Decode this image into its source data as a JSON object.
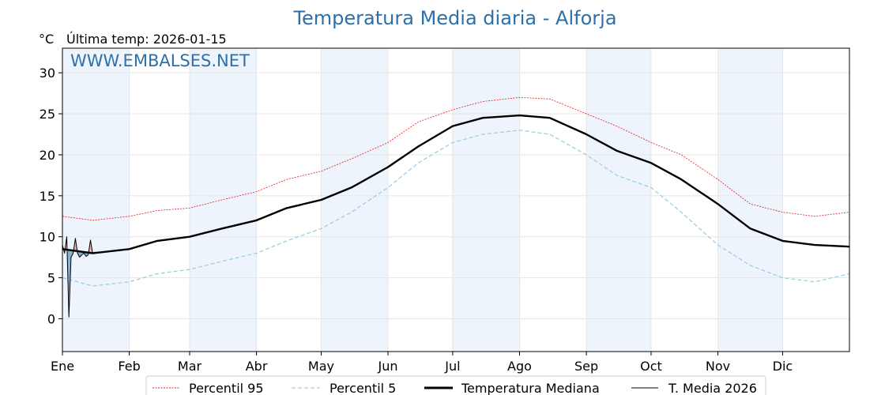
{
  "header": {
    "title": "Temperatura Media diaria - Alforja",
    "unit": "°C",
    "last_temp": "Última temp: 2026-01-15",
    "watermark": "WWW.EMBALSES.NET"
  },
  "legend": {
    "p95": "Percentil 95",
    "p5": "Percentil 5",
    "median": "Temperatura Mediana",
    "current": "T. Media 2026"
  },
  "colors": {
    "p95": "#e41a1c",
    "p5": "#9ccfe0",
    "median": "#000000",
    "current": "#000000",
    "fill_below": "#3a78a8",
    "fill_above": "#e88080",
    "band": "#eef4fb",
    "title": "#2f6fa8"
  },
  "chart_data": {
    "type": "line",
    "title": "Temperatura Media diaria - Alforja",
    "ylabel": "°C",
    "xlabel": "",
    "ylim": [
      -4,
      33
    ],
    "xlim": [
      1,
      366
    ],
    "grid": true,
    "legend_position": "bottom",
    "y_ticks": [
      0,
      5,
      10,
      15,
      20,
      25,
      30
    ],
    "months": [
      {
        "label": "Ene",
        "day": 1
      },
      {
        "label": "Feb",
        "day": 32
      },
      {
        "label": "Mar",
        "day": 60
      },
      {
        "label": "Abr",
        "day": 91
      },
      {
        "label": "May",
        "day": 121
      },
      {
        "label": "Jun",
        "day": 152
      },
      {
        "label": "Jul",
        "day": 182
      },
      {
        "label": "Ago",
        "day": 213
      },
      {
        "label": "Sep",
        "day": 244
      },
      {
        "label": "Oct",
        "day": 274
      },
      {
        "label": "Nov",
        "day": 305
      },
      {
        "label": "Dic",
        "day": 335
      }
    ],
    "series": [
      {
        "name": "Percentil 95",
        "x": [
          1,
          15,
          32,
          45,
          60,
          75,
          91,
          105,
          121,
          135,
          152,
          166,
          182,
          196,
          213,
          227,
          244,
          258,
          274,
          288,
          305,
          320,
          335,
          350,
          366
        ],
        "values": [
          12.5,
          12,
          12.5,
          13.2,
          13.5,
          14.5,
          15.5,
          17,
          18,
          19.5,
          21.5,
          24,
          25.5,
          26.5,
          27,
          26.8,
          25,
          23.5,
          21.5,
          20,
          17,
          14,
          13,
          12.5,
          13
        ]
      },
      {
        "name": "Percentil 5",
        "x": [
          1,
          15,
          32,
          45,
          60,
          75,
          91,
          105,
          121,
          135,
          152,
          166,
          182,
          196,
          213,
          227,
          244,
          258,
          274,
          288,
          305,
          320,
          335,
          350,
          366
        ],
        "values": [
          5,
          4,
          4.5,
          5.5,
          6,
          7,
          8,
          9.5,
          11,
          13,
          16,
          19,
          21.5,
          22.5,
          23,
          22.5,
          20,
          17.5,
          16,
          13,
          9,
          6.5,
          5,
          4.5,
          5.5
        ]
      },
      {
        "name": "Temperatura Mediana",
        "x": [
          1,
          15,
          32,
          45,
          60,
          75,
          91,
          105,
          121,
          135,
          152,
          166,
          182,
          196,
          213,
          227,
          244,
          258,
          274,
          288,
          305,
          320,
          335,
          350,
          366
        ],
        "values": [
          8.5,
          8,
          8.5,
          9.5,
          10,
          11,
          12,
          13.5,
          14.5,
          16,
          18.5,
          21,
          23.5,
          24.5,
          24.8,
          24.5,
          22.5,
          20.5,
          19,
          17,
          14,
          11,
          9.5,
          9,
          8.8
        ]
      },
      {
        "name": "T. Media 2026",
        "x": [
          1,
          2,
          3,
          4,
          5,
          6,
          7,
          8,
          9,
          10,
          11,
          12,
          13,
          14,
          15
        ],
        "values": [
          9,
          8,
          10,
          0.2,
          7.5,
          8,
          9.8,
          8,
          7.5,
          7.8,
          8,
          7.6,
          7.8,
          9.6,
          8
        ]
      }
    ]
  }
}
